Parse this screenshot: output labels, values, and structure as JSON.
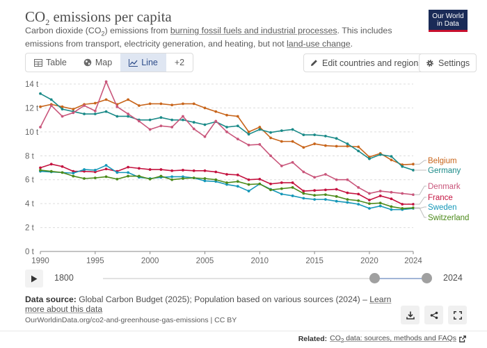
{
  "header": {
    "title_main": "CO",
    "title_sub": "2",
    "title_rest": " emissions per capita",
    "subtitle_1": "Carbon dioxide (CO",
    "subtitle_2": "2",
    "subtitle_3": ") emissions from ",
    "subtitle_link_1": "burning fossil fuels and industrial processes",
    "subtitle_4": ". This includes emissions from transport, electricity generation, and heating, but not ",
    "subtitle_link_2": "land-use change",
    "subtitle_5": "."
  },
  "logo": {
    "line1": "Our World",
    "line2": "in Data"
  },
  "tabs": [
    {
      "label": "Table",
      "icon": "table-icon"
    },
    {
      "label": "Map",
      "icon": "globe-icon"
    },
    {
      "label": "Line",
      "icon": "line-chart-icon",
      "active": true
    },
    {
      "label": "+2"
    }
  ],
  "actions": {
    "edit_label": "Edit countries and regions",
    "settings_label": "Settings"
  },
  "timeline": {
    "start_label": "1800",
    "end_label": "2024",
    "range_start": 1990,
    "range_end": 2024,
    "min": 1800,
    "max": 2024
  },
  "footer": {
    "source_label": "Data source:",
    "source_text": " Global Carbon Budget (2025); Population based on various sources (2024) – ",
    "learn_more": "Learn more about this data",
    "url_text": "OurWorldinData.org/co2-and-greenhouse-gas-emissions | CC BY"
  },
  "related": {
    "label": "Related:",
    "link_1": "CO",
    "link_sub": "2",
    "link_2": " data: sources, methods and FAQs"
  },
  "colors": {
    "Belgium": "#c8651b",
    "Germany": "#1a8a88",
    "Denmark": "#c9567b",
    "France": "#c4123f",
    "Sweden": "#1597b8",
    "Switzerland": "#4c8a1a",
    "accent": "#2d4c8a"
  },
  "chart_data": {
    "type": "line",
    "title": "CO2 emissions per capita",
    "xlabel": "",
    "ylabel": "",
    "xlim": [
      1990,
      2024
    ],
    "ylim": [
      0,
      14
    ],
    "y_ticks": [
      0,
      2,
      4,
      6,
      8,
      10,
      12,
      14
    ],
    "y_tick_labels": [
      "0 t",
      "2 t",
      "4 t",
      "6 t",
      "8 t",
      "10 t",
      "12 t",
      "14 t"
    ],
    "x_ticks": [
      1990,
      1995,
      2000,
      2005,
      2010,
      2015,
      2020,
      2024
    ],
    "x": [
      1990,
      1991,
      1992,
      1993,
      1994,
      1995,
      1996,
      1997,
      1998,
      1999,
      2000,
      2001,
      2002,
      2003,
      2004,
      2005,
      2006,
      2007,
      2008,
      2009,
      2010,
      2011,
      2012,
      2013,
      2014,
      2015,
      2016,
      2017,
      2018,
      2019,
      2020,
      2021,
      2022,
      2023,
      2024
    ],
    "series": [
      {
        "name": "Belgium",
        "values": [
          12.1,
          12.3,
          12.1,
          11.9,
          12.3,
          12.4,
          12.7,
          12.3,
          12.7,
          12.2,
          12.35,
          12.35,
          12.25,
          12.35,
          12.35,
          12.0,
          11.7,
          11.4,
          11.3,
          10.0,
          10.4,
          9.5,
          9.2,
          9.2,
          8.7,
          9.0,
          8.85,
          8.8,
          8.8,
          8.75,
          7.9,
          8.2,
          7.65,
          7.25,
          7.3
        ]
      },
      {
        "name": "Germany",
        "values": [
          13.2,
          12.7,
          11.9,
          11.7,
          11.5,
          11.5,
          11.7,
          11.3,
          11.3,
          11.0,
          11.0,
          11.2,
          11.0,
          11.0,
          10.8,
          10.6,
          10.85,
          10.4,
          10.5,
          9.8,
          10.2,
          9.95,
          10.1,
          10.2,
          9.75,
          9.75,
          9.65,
          9.45,
          9.0,
          8.4,
          7.75,
          8.1,
          7.95,
          7.1,
          6.8
        ]
      },
      {
        "name": "Denmark",
        "values": [
          10.4,
          12.2,
          11.3,
          11.6,
          12.2,
          11.75,
          14.2,
          12.1,
          11.5,
          10.9,
          10.2,
          10.5,
          10.4,
          11.3,
          10.25,
          9.6,
          10.9,
          10.0,
          9.4,
          8.9,
          8.95,
          8.0,
          7.15,
          7.45,
          6.65,
          6.2,
          6.45,
          6.0,
          6.0,
          5.35,
          4.85,
          5.05,
          4.95,
          4.85,
          4.75
        ]
      },
      {
        "name": "France",
        "values": [
          7.0,
          7.3,
          7.1,
          6.7,
          6.7,
          6.65,
          6.9,
          6.7,
          7.05,
          6.95,
          6.85,
          6.85,
          6.75,
          6.8,
          6.75,
          6.75,
          6.65,
          6.45,
          6.4,
          6.0,
          6.05,
          5.65,
          5.75,
          5.75,
          5.05,
          5.1,
          5.15,
          5.2,
          4.9,
          4.8,
          4.3,
          4.65,
          4.4,
          3.95,
          3.95
        ]
      },
      {
        "name": "Sweden",
        "values": [
          6.7,
          6.65,
          6.6,
          6.55,
          6.85,
          6.8,
          7.2,
          6.6,
          6.6,
          6.2,
          6.1,
          6.2,
          6.25,
          6.25,
          6.15,
          5.9,
          5.85,
          5.6,
          5.45,
          5.05,
          5.65,
          5.2,
          4.8,
          4.65,
          4.45,
          4.35,
          4.35,
          4.2,
          4.1,
          3.95,
          3.6,
          3.8,
          3.5,
          3.5,
          3.6
        ]
      },
      {
        "name": "Switzerland",
        "values": [
          6.8,
          6.7,
          6.6,
          6.3,
          6.1,
          6.15,
          6.25,
          6.05,
          6.3,
          6.3,
          6.05,
          6.3,
          6.0,
          6.1,
          6.15,
          6.1,
          6.0,
          5.75,
          5.85,
          5.6,
          5.65,
          5.15,
          5.25,
          5.35,
          4.85,
          4.7,
          4.75,
          4.6,
          4.35,
          4.25,
          4.0,
          4.05,
          3.75,
          3.6,
          3.65
        ]
      }
    ],
    "grid": true,
    "legend_position": "right"
  }
}
